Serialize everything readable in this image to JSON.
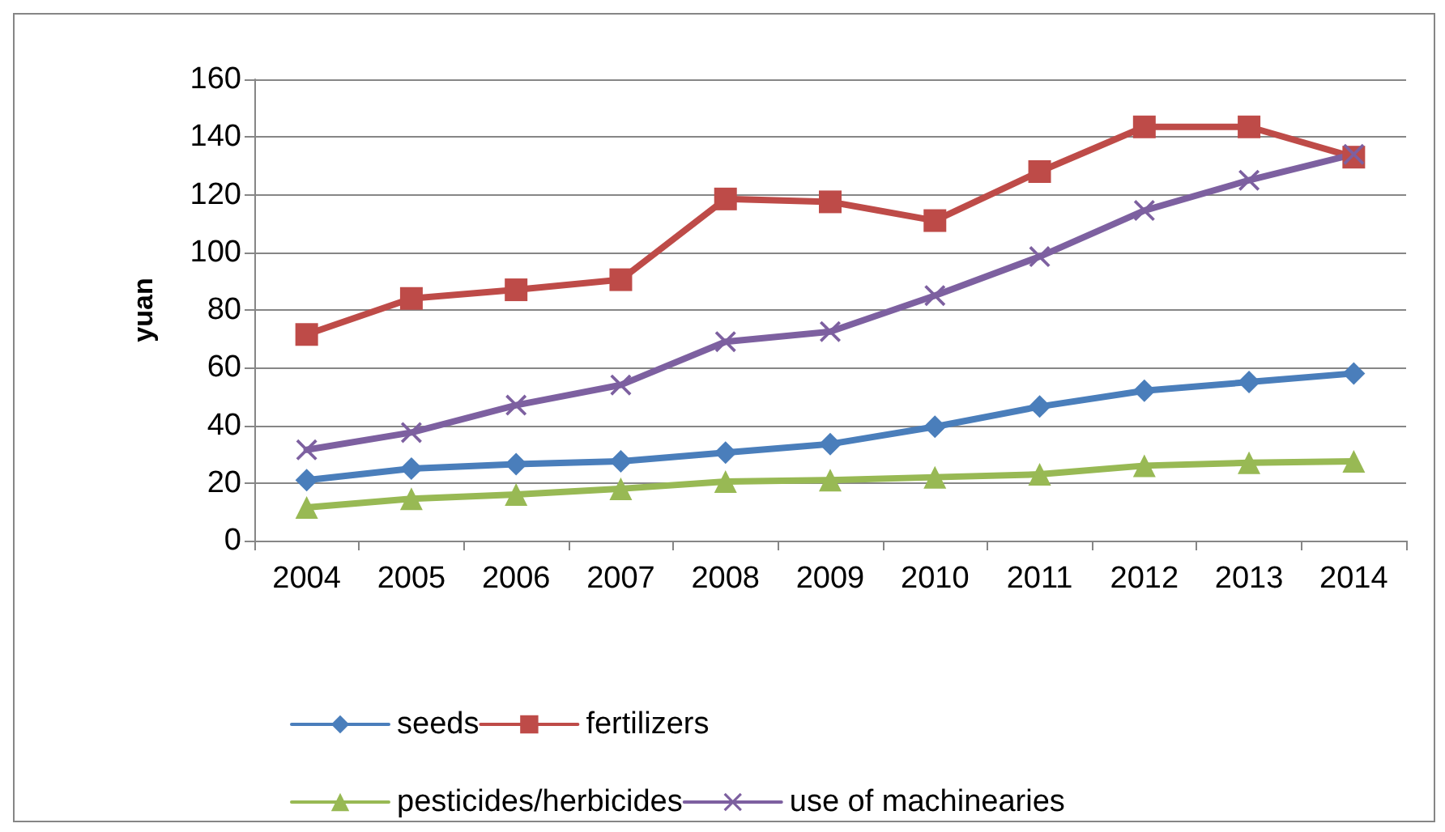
{
  "chart_data": {
    "type": "line",
    "ylabel": "yuan",
    "categories": [
      "2004",
      "2005",
      "2006",
      "2007",
      "2008",
      "2009",
      "2010",
      "2011",
      "2012",
      "2013",
      "2014"
    ],
    "series": [
      {
        "name": "seeds",
        "color": "#4a7ebb",
        "marker": "diamond",
        "values": [
          21,
          25,
          26.5,
          27.5,
          30.5,
          33.5,
          39.5,
          46.5,
          52,
          55,
          58
        ]
      },
      {
        "name": "fertilizers",
        "color": "#be4b48",
        "marker": "square",
        "values": [
          71.5,
          84,
          87,
          90.5,
          118.5,
          117.5,
          111,
          128,
          143.5,
          143.5,
          133
        ]
      },
      {
        "name": "pesticides/herbicides",
        "color": "#98b954",
        "marker": "triangle",
        "values": [
          11.5,
          14.5,
          16,
          18,
          20.5,
          21,
          22,
          23,
          26,
          27,
          27.5
        ]
      },
      {
        "name": "use of machinearies",
        "color": "#7d60a0",
        "marker": "cross",
        "values": [
          31.5,
          37.5,
          47,
          54,
          69,
          72.5,
          85,
          98.5,
          114.5,
          125,
          134
        ]
      }
    ],
    "ylim": [
      0,
      160
    ],
    "yticks": [
      0,
      20,
      40,
      60,
      80,
      100,
      120,
      140,
      160
    ],
    "grid": "y",
    "legend": "bottom",
    "line_style": "solid"
  }
}
